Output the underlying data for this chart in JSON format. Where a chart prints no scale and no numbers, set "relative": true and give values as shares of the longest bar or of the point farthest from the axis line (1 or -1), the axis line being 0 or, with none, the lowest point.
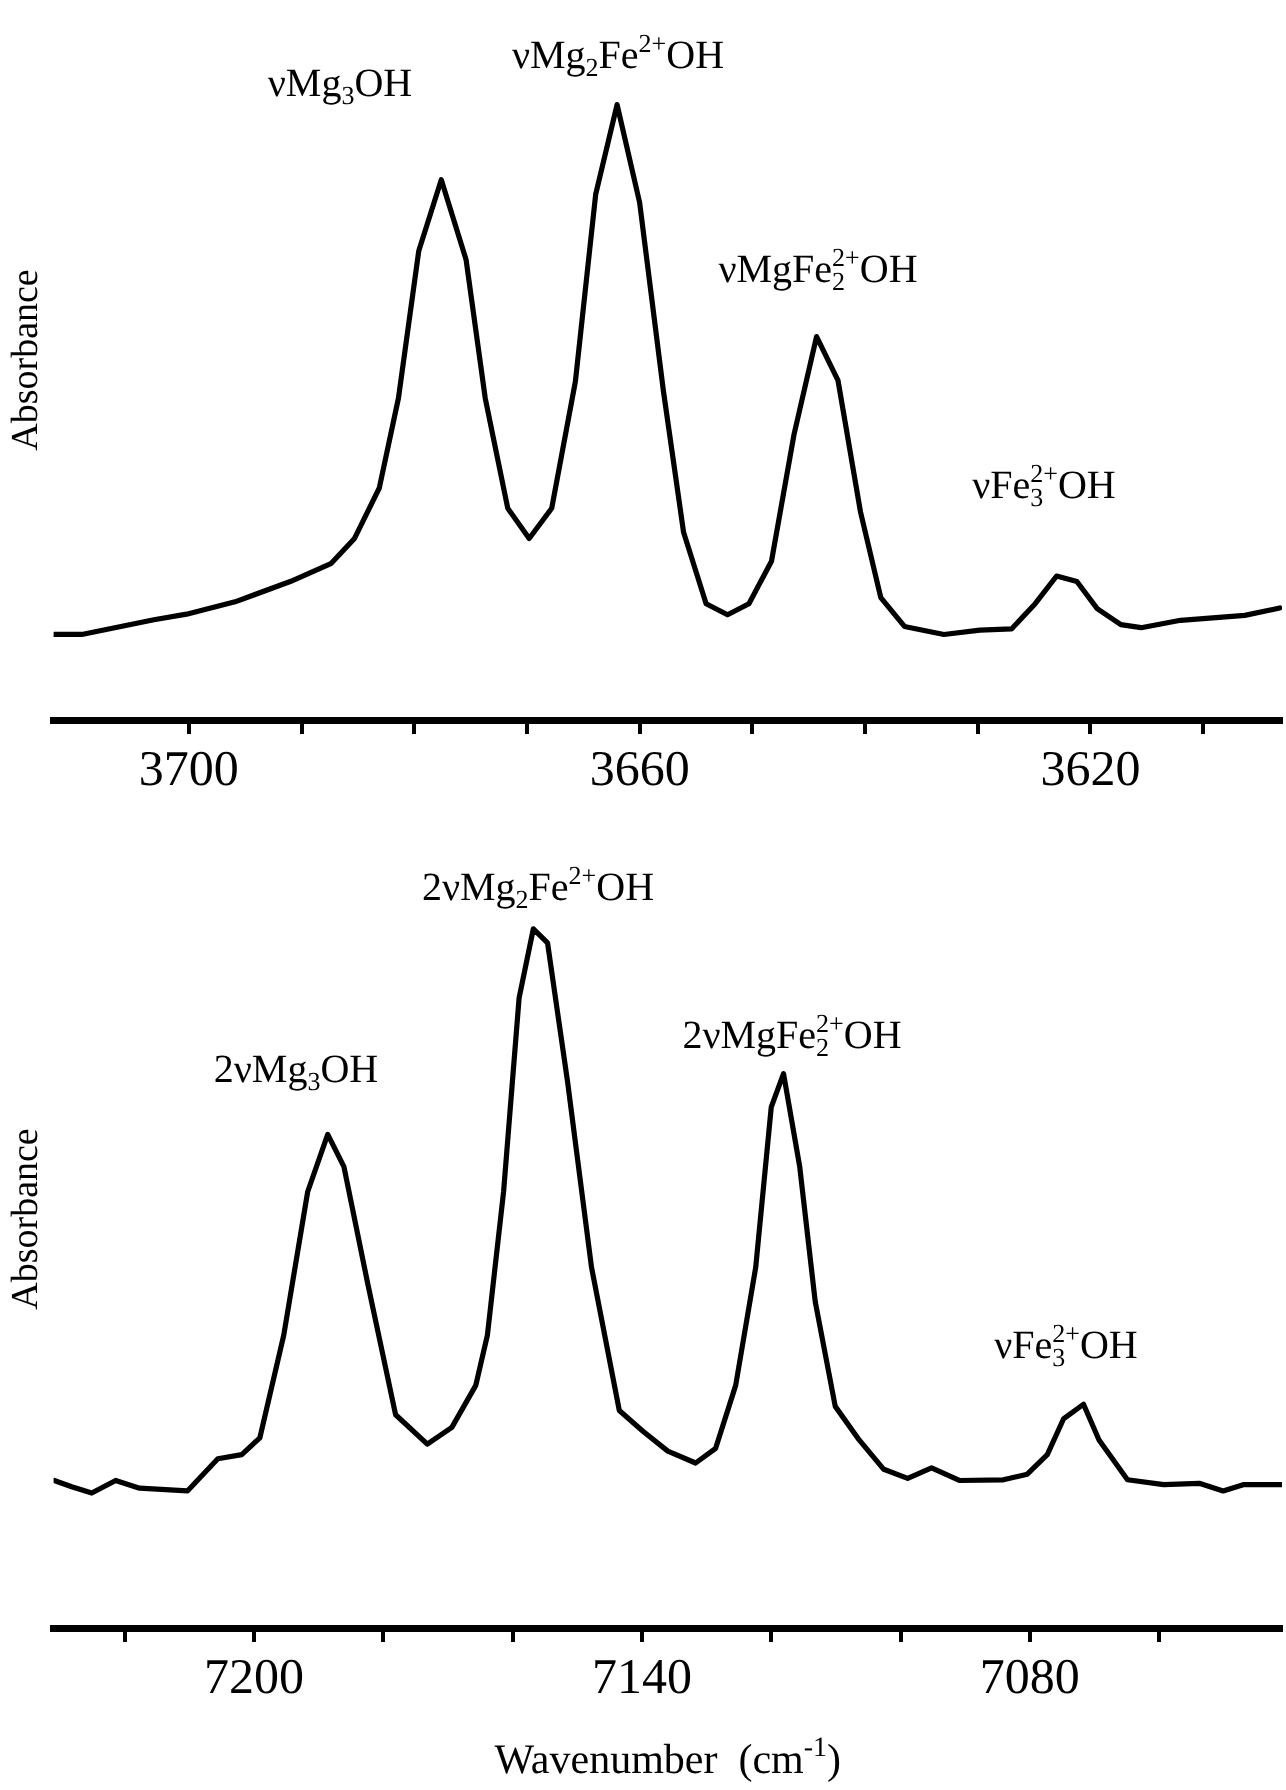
{
  "chart_data": [
    {
      "type": "line",
      "relative": true,
      "ylabel": "Absorbance",
      "color": "#000000",
      "tick_labels": "x",
      "xlim": [
        3712,
        3603
      ],
      "xticks": [
        {
          "value": 3690,
          "label": null
        },
        {
          "value": 3680,
          "label": null
        },
        {
          "value": 3670,
          "label": null
        },
        {
          "value": 3650,
          "label": null
        },
        {
          "value": 3640,
          "label": null
        },
        {
          "value": 3630,
          "label": null
        },
        {
          "value": 3610,
          "label": null
        },
        3700,
        3660,
        3620
      ],
      "x": [
        3712,
        3709.5,
        3703.1,
        3700.2,
        3695.9,
        3691.0,
        3687.4,
        3685.3,
        3683.1,
        3681.4,
        3679.6,
        3677.6,
        3675.4,
        3673.7,
        3671.7,
        3669.8,
        3667.8,
        3665.7,
        3663.9,
        3662.0,
        3660.0,
        3657.9,
        3656.1,
        3654.1,
        3652.2,
        3650.3,
        3648.3,
        3646.3,
        3644.3,
        3642.4,
        3640.4,
        3638.6,
        3636.5,
        3633.0,
        3629.8,
        3627.0,
        3624.9,
        3623.0,
        3621.2,
        3619.4,
        3617.3,
        3615.5,
        3612.0,
        3606.3,
        3603.2
      ],
      "values": [
        0.139,
        0.139,
        0.163,
        0.172,
        0.192,
        0.225,
        0.254,
        0.295,
        0.377,
        0.523,
        0.762,
        0.878,
        0.748,
        0.523,
        0.344,
        0.295,
        0.344,
        0.55,
        0.854,
        1.0,
        0.841,
        0.536,
        0.305,
        0.189,
        0.171,
        0.189,
        0.258,
        0.464,
        0.623,
        0.552,
        0.338,
        0.199,
        0.152,
        0.139,
        0.146,
        0.148,
        0.189,
        0.234,
        0.225,
        0.181,
        0.155,
        0.15,
        0.162,
        0.17,
        0.182
      ],
      "annotations": [
        "νMg$_{3}$OH",
        "νMg$_{2}$Fe$^{2+}$OH",
        "νMgFe$_{2}$$^{2+}$OH",
        "νFe$_{3}$$^{2+}$OH"
      ]
    },
    {
      "type": "line",
      "relative": true,
      "ylabel": "Absorbance",
      "xlabel": "Wavenumber  (cm$^{-1}$)",
      "color": "#000000",
      "tick_labels": "x",
      "xlim": [
        7231,
        7041
      ],
      "xticks": [
        {
          "value": 7220,
          "label": null
        },
        {
          "value": 7180,
          "label": null
        },
        {
          "value": 7160,
          "label": null
        },
        {
          "value": 7120,
          "label": null
        },
        {
          "value": 7100,
          "label": null
        },
        {
          "value": 7060,
          "label": null
        },
        7200,
        7140,
        7080
      ],
      "x": [
        7230.9,
        7228.2,
        7225.1,
        7221.4,
        7217.7,
        7210.3,
        7205.6,
        7201.9,
        7199.1,
        7195.4,
        7191.7,
        7188.6,
        7186.1,
        7182.4,
        7178.1,
        7173.2,
        7169.4,
        7165.7,
        7163.9,
        7161.4,
        7159.0,
        7156.8,
        7154.6,
        7151.5,
        7147.8,
        7143.5,
        7139.8,
        7136.0,
        7131.7,
        7128.6,
        7125.5,
        7122.4,
        7120.0,
        7118.1,
        7115.6,
        7113.2,
        7110.1,
        7106.4,
        7102.6,
        7098.9,
        7095.2,
        7090.9,
        7084.1,
        7080.4,
        7077.3,
        7074.8,
        7071.7,
        7069.3,
        7064.9,
        7059.3,
        7053.8,
        7050.1,
        7047.0,
        7041.0
      ],
      "values": [
        0.211,
        0.202,
        0.193,
        0.211,
        0.2,
        0.196,
        0.242,
        0.248,
        0.272,
        0.419,
        0.624,
        0.706,
        0.66,
        0.492,
        0.305,
        0.263,
        0.287,
        0.347,
        0.419,
        0.624,
        0.901,
        1.0,
        0.98,
        0.781,
        0.516,
        0.311,
        0.281,
        0.253,
        0.236,
        0.257,
        0.347,
        0.516,
        0.745,
        0.793,
        0.66,
        0.467,
        0.317,
        0.269,
        0.227,
        0.214,
        0.229,
        0.211,
        0.212,
        0.22,
        0.248,
        0.299,
        0.32,
        0.269,
        0.212,
        0.205,
        0.207,
        0.196,
        0.205,
        0.205
      ],
      "annotations": [
        "2νMg$_{3}$OH",
        "2νMg$_{2}$Fe$^{2+}$OH",
        "2νMgFe$_{2}$$^{2+}$OH",
        "νFe$_{3}$$^{2+}$OH"
      ]
    }
  ]
}
